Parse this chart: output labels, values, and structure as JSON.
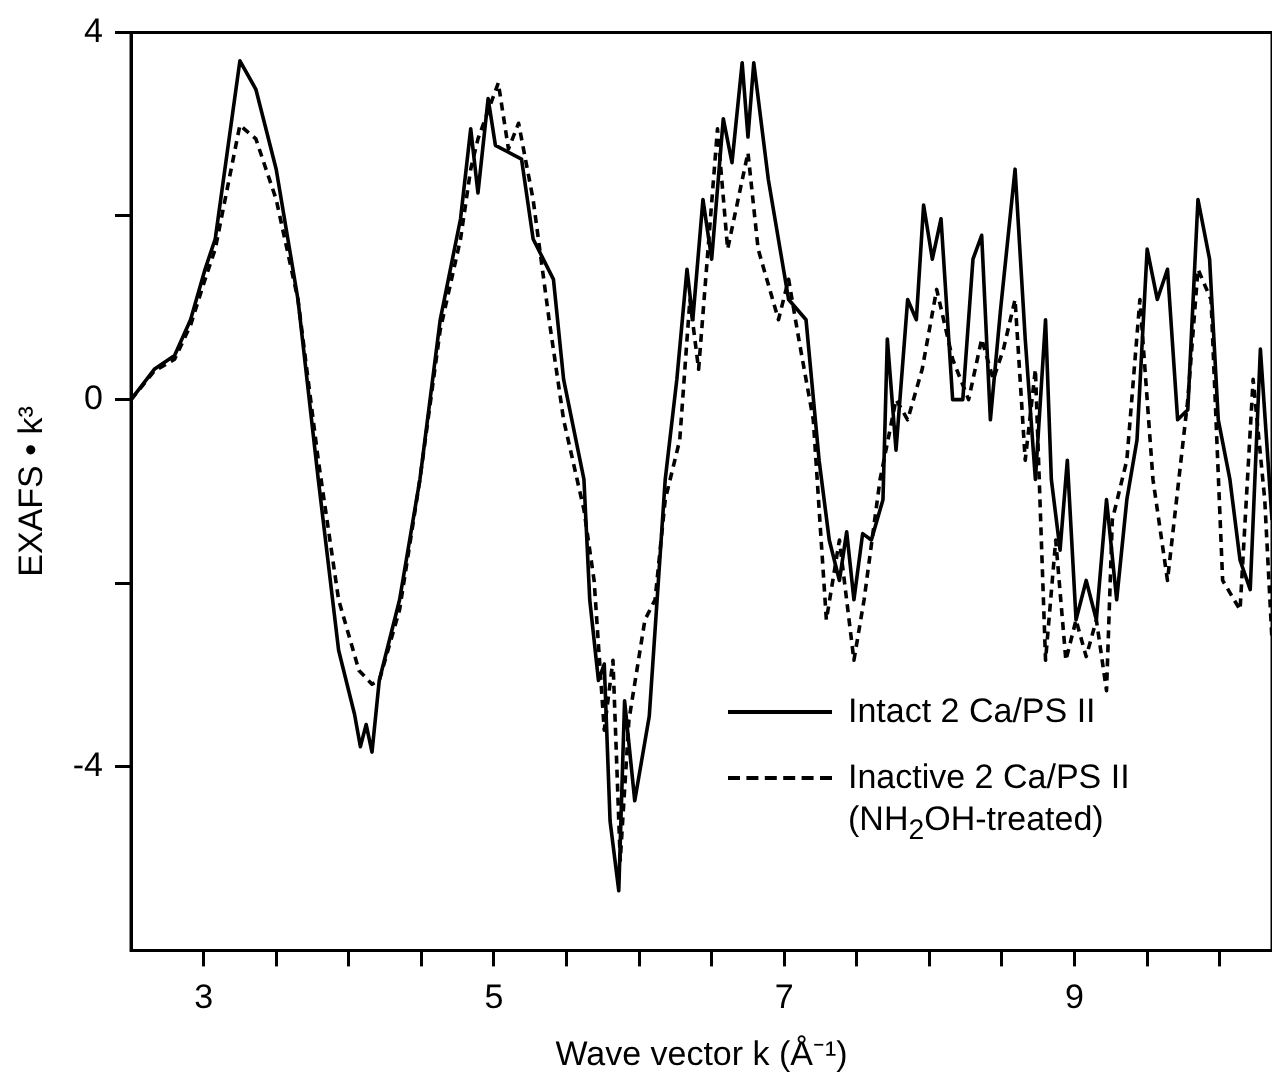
{
  "chart_data": {
    "type": "line",
    "xlabel": "Wave vector k (Å⁻¹)",
    "ylabel": "EXAFS • k³",
    "xlim": [
      2.5,
      10.36
    ],
    "ylim": [
      -6,
      4
    ],
    "xticks": [
      {
        "value": 3,
        "label": "3"
      },
      {
        "value": 3.5,
        "label": null
      },
      {
        "value": 4,
        "label": null
      },
      {
        "value": 4.5,
        "label": null
      },
      {
        "value": 5,
        "label": "5"
      },
      {
        "value": 5.5,
        "label": null
      },
      {
        "value": 6,
        "label": null
      },
      {
        "value": 6.5,
        "label": null
      },
      {
        "value": 7,
        "label": "7"
      },
      {
        "value": 7.5,
        "label": null
      },
      {
        "value": 8,
        "label": null
      },
      {
        "value": 8.5,
        "label": null
      },
      {
        "value": 9,
        "label": "9"
      },
      {
        "value": 9.5,
        "label": null
      },
      {
        "value": 10,
        "label": null
      }
    ],
    "yticks": [
      -4,
      {
        "value": -2,
        "label": null
      },
      0,
      {
        "value": 2,
        "label": null
      },
      4
    ],
    "grid": false,
    "legend": "bottom right",
    "marker": "none",
    "series": [
      {
        "name": "Intact 2 Ca/PS II",
        "color": "#000000",
        "line_style": "solid",
        "x": [
          2.5,
          2.66,
          2.8,
          2.91,
          3.01,
          3.08,
          3.25,
          3.36,
          3.5,
          3.65,
          3.79,
          3.93,
          4.04,
          4.08,
          4.12,
          4.16,
          4.21,
          4.35,
          4.49,
          4.63,
          4.77,
          4.84,
          4.89,
          4.96,
          5.01,
          5.19,
          5.27,
          5.41,
          5.48,
          5.62,
          5.66,
          5.72,
          5.76,
          5.8,
          5.86,
          5.9,
          5.97,
          6.07,
          6.18,
          6.26,
          6.33,
          6.37,
          6.44,
          6.5,
          6.58,
          6.64,
          6.71,
          6.75,
          6.79,
          6.89,
          7.03,
          7.15,
          7.24,
          7.31,
          7.38,
          7.43,
          7.48,
          7.54,
          7.6,
          7.68,
          7.71,
          7.77,
          7.85,
          7.91,
          7.96,
          8.02,
          8.08,
          8.16,
          8.23,
          8.3,
          8.36,
          8.42,
          8.49,
          8.59,
          8.66,
          8.73,
          8.8,
          8.84,
          8.9,
          8.95,
          9.01,
          9.08,
          9.15,
          9.22,
          9.29,
          9.36,
          9.43,
          9.5,
          9.57,
          9.64,
          9.71,
          9.78,
          9.85,
          9.93,
          9.99,
          10.07,
          10.14,
          10.21,
          10.28,
          10.36
        ],
        "values": [
          0,
          0.33,
          0.48,
          0.87,
          1.42,
          1.75,
          3.69,
          3.38,
          2.51,
          1.09,
          -0.87,
          -2.73,
          -3.43,
          -3.78,
          -3.54,
          -3.84,
          -3.06,
          -2.18,
          -0.87,
          0.87,
          1.97,
          2.95,
          2.25,
          3.28,
          2.77,
          2.62,
          1.75,
          1.31,
          0.22,
          -0.87,
          -2.18,
          -3.06,
          -2.88,
          -4.59,
          -5.35,
          -3.28,
          -4.37,
          -3.45,
          -0.87,
          0.22,
          1.42,
          0.87,
          2.18,
          1.53,
          3.06,
          2.58,
          3.67,
          2.86,
          3.67,
          2.4,
          1.09,
          0.87,
          -0.66,
          -1.53,
          -1.97,
          -1.44,
          -2.18,
          -1.46,
          -1.53,
          -1.09,
          0.66,
          -0.55,
          1.09,
          0.87,
          2.12,
          1.53,
          1.97,
          0,
          0,
          1.53,
          1.79,
          -0.22,
          0.98,
          2.51,
          0.66,
          -0.87,
          0.87,
          -0.87,
          -1.64,
          -0.66,
          -2.4,
          -1.97,
          -2.4,
          -1.09,
          -2.18,
          -1.09,
          -0.44,
          1.64,
          1.09,
          1.42,
          -0.22,
          -0.11,
          2.18,
          1.53,
          -0.22,
          -0.87,
          -1.75,
          -2.07,
          0.55,
          -1.31
        ]
      },
      {
        "name": "Inactive 2 Ca/PS II (NH$_{2}$OH-treated)",
        "color": "#000000",
        "line_style": "dashed",
        "x": [
          2.5,
          2.66,
          2.8,
          2.91,
          3.01,
          3.08,
          3.25,
          3.36,
          3.5,
          3.65,
          3.79,
          3.93,
          4.07,
          4.16,
          4.21,
          4.35,
          4.49,
          4.63,
          4.77,
          4.84,
          4.89,
          5.03,
          5.1,
          5.17,
          5.27,
          5.38,
          5.48,
          5.62,
          5.69,
          5.76,
          5.82,
          5.87,
          5.93,
          6.04,
          6.11,
          6.18,
          6.28,
          6.35,
          6.41,
          6.54,
          6.61,
          6.75,
          6.82,
          6.96,
          7.03,
          7.1,
          7.2,
          7.29,
          7.38,
          7.48,
          7.55,
          7.66,
          7.77,
          7.85,
          7.95,
          8.05,
          8.16,
          8.27,
          8.36,
          8.44,
          8.51,
          8.59,
          8.66,
          8.73,
          8.8,
          8.87,
          8.94,
          9.01,
          9.08,
          9.15,
          9.22,
          9.26,
          9.36,
          9.45,
          9.54,
          9.64,
          9.78,
          9.85,
          9.94,
          10.02,
          10.14,
          10.23,
          10.31,
          10.36
        ],
        "values": [
          0,
          0.31,
          0.44,
          0.81,
          1.31,
          1.64,
          2.99,
          2.84,
          2.18,
          1.09,
          -0.66,
          -2.18,
          -2.95,
          -3.1,
          -3.06,
          -2.29,
          -0.87,
          0.76,
          1.75,
          2.51,
          2.84,
          3.45,
          2.73,
          3.01,
          2.18,
          0.87,
          -0.22,
          -1.2,
          -1.97,
          -3.6,
          -2.84,
          -5.02,
          -3.49,
          -2.4,
          -2.18,
          -1.09,
          -0.44,
          1.09,
          0.33,
          2.95,
          1.64,
          2.69,
          1.64,
          0.87,
          1.31,
          0.66,
          -0.22,
          -2.4,
          -1.53,
          -2.84,
          -2.18,
          -0.87,
          0,
          -0.22,
          0.33,
          1.2,
          0.44,
          0,
          0.66,
          0.22,
          0.55,
          1.09,
          -0.66,
          0.33,
          -2.84,
          -1.53,
          -2.84,
          -2.4,
          -2.8,
          -2.4,
          -3.17,
          -1.31,
          -0.66,
          1.09,
          -0.87,
          -1.97,
          0,
          1.42,
          1.09,
          -1.97,
          -2.29,
          0.22,
          -1.09,
          -2.62
        ]
      }
    ]
  }
}
